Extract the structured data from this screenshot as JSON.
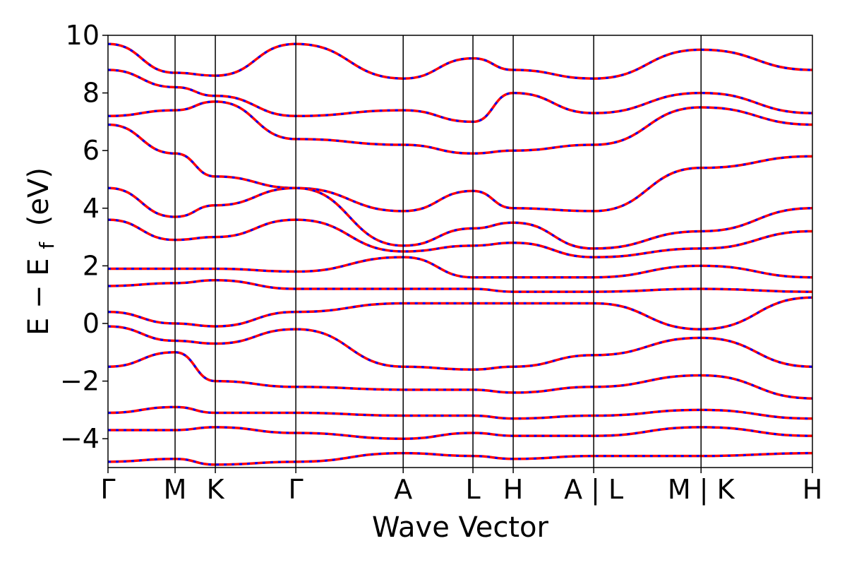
{
  "chart_data": {
    "type": "line",
    "title": "",
    "xlabel": "Wave Vector",
    "ylabel": "E − E",
    "ylabel_subscript": "f",
    "ylabel_unit": "(eV)",
    "ylim": [
      -5,
      10
    ],
    "yticks": [
      -4,
      -2,
      0,
      2,
      4,
      6,
      8,
      10
    ],
    "ytick_labels": [
      "−4",
      "−2",
      "0",
      "2",
      "4",
      "6",
      "8",
      "10"
    ],
    "xlim": [
      0,
      5.25
    ],
    "xticks": [
      0,
      0.5,
      0.8,
      1.4,
      2.2,
      2.72,
      3.02,
      3.62,
      4.42,
      5.25
    ],
    "xtick_labels": [
      "Γ",
      "M",
      "K",
      "Γ",
      "A",
      "L",
      "H",
      "A | L",
      "M | K",
      "H"
    ],
    "grid": false,
    "legend": "none",
    "colors": {
      "dft": "#ff0000",
      "wannier": "#0000ff",
      "frame": "#000000"
    },
    "band_paths": [
      [
        0,
        10
      ],
      [
        0.5,
        9.0
      ],
      [
        0.8,
        9.5
      ],
      [
        1.4,
        9.7
      ],
      [
        2.2,
        8.5
      ],
      [
        2.72,
        9.5
      ],
      [
        3.02,
        8.7
      ],
      [
        3.62,
        8.5
      ],
      [
        4.42,
        9.6
      ],
      [
        5.25,
        8.8
      ]
    ],
    "series": [
      {
        "x": [
          0,
          0.5,
          0.8,
          1.4,
          2.2,
          2.72,
          3.02,
          3.62,
          4.42,
          5.25
        ],
        "values": [
          9.7,
          8.7,
          8.6,
          9.7,
          8.5,
          9.2,
          8.8,
          8.5,
          9.5,
          8.8
        ]
      },
      {
        "x": [
          0,
          0.5,
          0.8,
          1.4,
          2.2,
          2.72,
          3.02,
          3.62,
          4.42,
          5.25
        ],
        "values": [
          8.8,
          8.2,
          7.9,
          7.2,
          7.4,
          7.0,
          8.0,
          7.3,
          8.0,
          7.3
        ]
      },
      {
        "x": [
          0,
          0.5,
          0.8,
          1.4,
          2.2,
          2.72,
          3.02,
          3.62,
          4.42,
          5.25
        ],
        "values": [
          7.2,
          7.4,
          7.7,
          6.4,
          6.2,
          5.9,
          6.0,
          6.2,
          7.5,
          6.9
        ]
      },
      {
        "x": [
          0,
          0.5,
          0.8,
          1.4,
          2.2,
          2.72,
          3.02,
          3.62,
          4.42,
          5.25
        ],
        "values": [
          6.9,
          5.9,
          5.1,
          4.7,
          3.9,
          4.6,
          4.0,
          3.9,
          5.4,
          5.8
        ]
      },
      {
        "x": [
          0,
          0.5,
          0.8,
          1.4,
          2.2,
          2.72,
          3.02,
          3.62,
          4.42,
          5.25
        ],
        "values": [
          4.7,
          3.7,
          4.1,
          4.7,
          2.7,
          3.3,
          3.5,
          2.6,
          3.2,
          4.0
        ]
      },
      {
        "x": [
          0,
          0.5,
          0.8,
          1.4,
          2.2,
          2.72,
          3.02,
          3.62,
          4.42,
          5.25
        ],
        "values": [
          3.6,
          2.9,
          3.0,
          3.6,
          2.5,
          2.7,
          2.8,
          2.3,
          2.6,
          3.2
        ]
      },
      {
        "x": [
          0,
          0.5,
          0.8,
          1.4,
          2.2,
          2.72,
          3.02,
          3.62,
          4.42,
          5.25
        ],
        "values": [
          1.9,
          1.9,
          1.9,
          1.8,
          2.3,
          1.6,
          1.6,
          1.6,
          2.0,
          1.6
        ]
      },
      {
        "x": [
          0,
          0.5,
          0.8,
          1.4,
          2.2,
          2.72,
          3.02,
          3.62,
          4.42,
          5.25
        ],
        "values": [
          1.3,
          1.4,
          1.5,
          1.2,
          1.2,
          1.2,
          1.1,
          1.1,
          1.2,
          1.1
        ]
      },
      {
        "x": [
          0,
          0.5,
          0.8,
          1.4,
          2.2,
          2.72,
          3.02,
          3.62,
          4.42,
          5.25
        ],
        "values": [
          0.4,
          0.0,
          -0.1,
          0.4,
          0.7,
          0.7,
          0.7,
          0.7,
          -0.2,
          0.9
        ]
      },
      {
        "x": [
          0,
          0.5,
          0.8,
          1.4,
          2.2,
          2.72,
          3.02,
          3.62,
          4.42,
          5.25
        ],
        "values": [
          -0.1,
          -0.6,
          -0.7,
          -0.2,
          -1.5,
          -1.6,
          -1.5,
          -1.1,
          -0.5,
          -1.5
        ]
      },
      {
        "x": [
          0,
          0.5,
          0.8,
          1.4,
          2.2,
          2.72,
          3.02,
          3.62,
          4.42,
          5.25
        ],
        "values": [
          -1.5,
          -1.0,
          -2.0,
          -2.2,
          -2.3,
          -2.3,
          -2.4,
          -2.2,
          -1.8,
          -2.6
        ]
      },
      {
        "x": [
          0,
          0.5,
          0.8,
          1.4,
          2.2,
          2.72,
          3.02,
          3.62,
          4.42,
          5.25
        ],
        "values": [
          -3.1,
          -2.9,
          -3.1,
          -3.1,
          -3.2,
          -3.2,
          -3.3,
          -3.2,
          -3.0,
          -3.3
        ]
      },
      {
        "x": [
          0,
          0.5,
          0.8,
          1.4,
          2.2,
          2.72,
          3.02,
          3.62,
          4.42,
          5.25
        ],
        "values": [
          -3.7,
          -3.7,
          -3.6,
          -3.8,
          -4.0,
          -3.8,
          -3.9,
          -3.9,
          -3.6,
          -3.9
        ]
      },
      {
        "x": [
          0,
          0.5,
          0.8,
          1.4,
          2.2,
          2.72,
          3.02,
          3.62,
          4.42,
          5.25
        ],
        "values": [
          -4.8,
          -4.7,
          -4.9,
          -4.8,
          -4.5,
          -4.6,
          -4.7,
          -4.6,
          -4.6,
          -4.5
        ]
      }
    ]
  }
}
